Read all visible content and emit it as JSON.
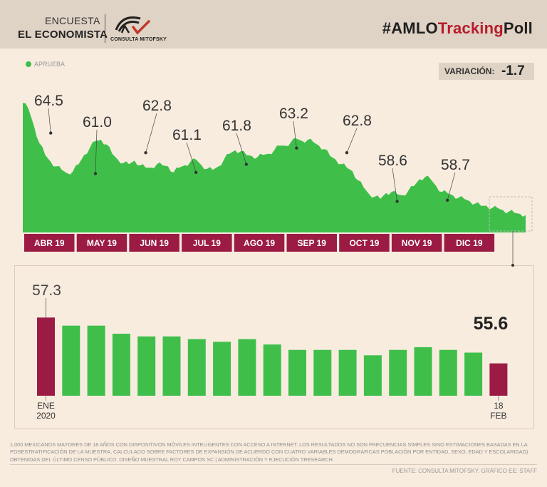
{
  "header": {
    "encuesta": "ENCUESTA",
    "economista": "EL ECONOMISTA",
    "mitofsky": "CONSULTA MITOFSKY",
    "hashtag_prefix": "#AMLO",
    "hashtag_red": "Tracking",
    "hashtag_suffix": "Poll"
  },
  "legend": {
    "label": "APRUEBA"
  },
  "variacion": {
    "label": "VARIACIÓN:",
    "value": "-1.7"
  },
  "colors": {
    "green": "#3fbf4a",
    "maroon": "#9b1b45",
    "beige": "#dfd3c5",
    "red": "#b81c2c"
  },
  "chart_data": [
    {
      "type": "area",
      "title": "",
      "series": [
        {
          "name": "APRUEBA"
        }
      ],
      "months": [
        "ABR 19",
        "MAY 19",
        "JUN 19",
        "JUL 19",
        "AGO 19",
        "SEP 19",
        "OCT 19",
        "NOV 19",
        "DIC 19"
      ],
      "annotations": [
        {
          "label": "64.5",
          "value": 64.5,
          "t": 0.05
        },
        {
          "label": "61.0",
          "value": 61.0,
          "t": 0.149
        },
        {
          "label": "62.8",
          "value": 62.8,
          "t": 0.248
        },
        {
          "label": "61.1",
          "value": 61.1,
          "t": 0.34
        },
        {
          "label": "61.8",
          "value": 61.8,
          "t": 0.44
        },
        {
          "label": "63.2",
          "value": 63.2,
          "t": 0.54
        },
        {
          "label": "62.8",
          "value": 62.8,
          "t": 0.645
        },
        {
          "label": "58.6",
          "value": 58.6,
          "t": 0.74
        },
        {
          "label": "58.7",
          "value": 58.7,
          "t": 0.84
        }
      ],
      "values": [
        66.5,
        66.0,
        64.5,
        63.0,
        62.0,
        61.4,
        61.0,
        60.7,
        60.4,
        60.6,
        61.2,
        62.0,
        62.6,
        63.2,
        63.3,
        62.9,
        62.1,
        61.6,
        61.3,
        61.2,
        61.5,
        61.1,
        60.9,
        60.9,
        61.2,
        61.1,
        61.0,
        60.5,
        60.9,
        61.1,
        61.4,
        61.6,
        61.1,
        60.8,
        60.7,
        61.0,
        61.6,
        62.1,
        62.4,
        62.3,
        62.0,
        61.9,
        61.8,
        62.0,
        62.1,
        62.4,
        62.8,
        62.8,
        63.1,
        63.4,
        63.2,
        63.3,
        63.1,
        62.8,
        62.5,
        61.9,
        61.6,
        61.2,
        60.9,
        60.6,
        59.8,
        59.2,
        58.6,
        58.4,
        58.2,
        58.7,
        58.8,
        58.6,
        58.5,
        58.9,
        59.3,
        59.9,
        60.1,
        59.9,
        59.3,
        58.8,
        58.7,
        58.5,
        58.3,
        58.2,
        58.0,
        57.8,
        57.6,
        57.6,
        57.4,
        57.4,
        57.2,
        57.1,
        57.0,
        56.9,
        56.8
      ],
      "ylim": [
        55.3,
        67.0
      ]
    },
    {
      "type": "bar",
      "title": "",
      "categories": [
        "ENE 2020",
        "",
        "",
        "",
        "",
        "",
        "",
        "",
        "",
        "",
        "",
        "",
        "",
        "",
        "",
        "",
        "",
        "",
        "18 FEB"
      ],
      "values": [
        57.3,
        57.0,
        57.0,
        56.7,
        56.6,
        56.6,
        56.5,
        56.4,
        56.5,
        56.3,
        56.1,
        56.1,
        56.1,
        55.9,
        56.1,
        56.2,
        56.1,
        56.0,
        55.6
      ],
      "labels": [
        "57.3",
        "55.6"
      ],
      "ylim": [
        54.4,
        57.6
      ]
    }
  ],
  "bar_labels": {
    "first_top": "57.3",
    "last_top": "55.6",
    "first_month": "ENE",
    "first_year": "2020",
    "last_day": "18",
    "last_month": "FEB"
  },
  "footnote": "1,000 mexicanos mayores de 18 años con dispositivos móviles inteligentes con acceso a internet. Los resultados no son frecuencias simples sino estimaciones basadas en la posestratificación de la muestra, calculado sobre factores de expansión de acuerdo con cuatro variables demográficas población por entidad, sexo, edad y escolaridad) obtenidas del último censo público. Diseño muestral Roy Campos SC | Administración y ejecución TResearch.",
  "source": "FUENTE: CONSULTA MITOFSKY. GRÁFICO EE: STAFF"
}
